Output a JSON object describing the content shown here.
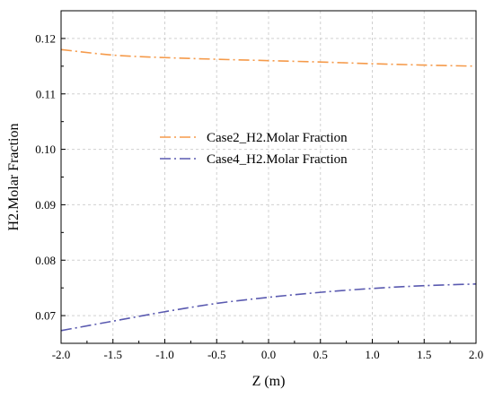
{
  "chart_data": {
    "type": "line",
    "xlabel": "Z (m)",
    "ylabel": "H2.Molar Fraction",
    "xlim": [
      -2.0,
      2.0
    ],
    "ylim": [
      0.065,
      0.125
    ],
    "xticks": [
      -2.0,
      -1.5,
      -1.0,
      -0.5,
      0.0,
      0.5,
      1.0,
      1.5,
      2.0
    ],
    "xtick_labels": [
      "-2.0",
      "-1.5",
      "-1.0",
      "-0.5",
      "0.0",
      "0.5",
      "1.0",
      "1.5",
      "2.0"
    ],
    "yticks": [
      0.07,
      0.08,
      0.09,
      0.1,
      0.11,
      0.12
    ],
    "ytick_labels": [
      "0.07",
      "0.08",
      "0.09",
      "0.10",
      "0.11",
      "0.12"
    ],
    "grid": true,
    "legend_position": "center-left",
    "x": [
      -2.0,
      -1.5,
      -1.0,
      -0.5,
      0.0,
      0.5,
      1.0,
      1.5,
      2.0
    ],
    "series": [
      {
        "name": "Case2_H2.Molar Fraction",
        "color": "#f59a4a",
        "line_style": "dash-dot",
        "values": [
          0.118,
          0.117,
          0.11655,
          0.11625,
          0.116,
          0.11575,
          0.11545,
          0.1152,
          0.115
        ]
      },
      {
        "name": "Case4_H2.Molar Fraction",
        "color": "#5a5ab0",
        "line_style": "dash-dot",
        "values": [
          0.0673,
          0.069,
          0.0707,
          0.0722,
          0.0733,
          0.0742,
          0.0749,
          0.0754,
          0.0757
        ]
      }
    ]
  }
}
